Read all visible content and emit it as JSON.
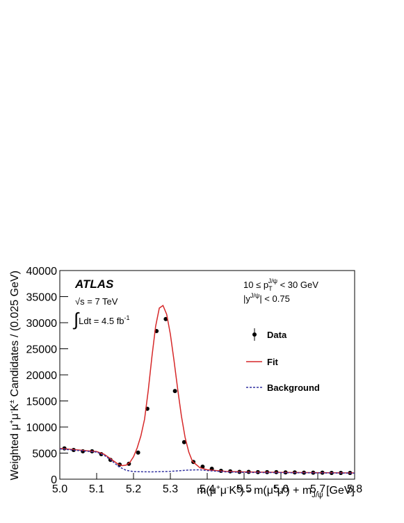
{
  "chart_data": {
    "type": "scatter",
    "brand": "ATLAS",
    "annotations": [
      {
        "parts": [
          "√s = 7 TeV"
        ]
      },
      {
        "parts": [
          "∫",
          "Ldt = 4.5 fb",
          "-1"
        ]
      },
      {
        "parts": [
          "10 ≤ p",
          "T",
          "J/ψ",
          " < 30 GeV"
        ]
      },
      {
        "parts": [
          "|y",
          "J/ψ",
          "| < 0.75"
        ]
      }
    ],
    "x_label": [
      "m(μ",
      "+",
      "μ",
      "-",
      "K",
      "±",
      ") - m(μ",
      "+",
      "μ",
      "-",
      ") + m",
      "J/ψ",
      " [GeV]"
    ],
    "y_label": [
      "Weighted μ",
      "+",
      "μ",
      "-",
      "K",
      "±",
      " Candidates / (0.025 GeV)"
    ],
    "xlim": [
      5.0,
      5.8
    ],
    "ylim": [
      0,
      40000
    ],
    "xticks": [
      {
        "value": 5.0,
        "label": "5.0"
      },
      5.1,
      5.2,
      5.3,
      5.4,
      5.5,
      5.6,
      5.7,
      5.8
    ],
    "yticks": [
      0,
      5000,
      10000,
      15000,
      20000,
      25000,
      30000,
      35000,
      40000
    ],
    "series": [
      {
        "name": "Data",
        "kind": "points",
        "color": "#000000",
        "x": [
          5.0125,
          5.0375,
          5.0625,
          5.0875,
          5.1125,
          5.1375,
          5.1625,
          5.1875,
          5.2125,
          5.2375,
          5.2625,
          5.2875,
          5.3125,
          5.3375,
          5.3625,
          5.3875,
          5.4125,
          5.4375,
          5.4625,
          5.4875,
          5.5125,
          5.5375,
          5.5625,
          5.5875,
          5.6125,
          5.6375,
          5.6625,
          5.6875,
          5.7125,
          5.7375,
          5.7625,
          5.7875
        ],
        "values": [
          5900,
          5600,
          5350,
          5350,
          4800,
          3700,
          2800,
          2950,
          5100,
          13500,
          28400,
          30700,
          16900,
          7100,
          3300,
          2400,
          2000,
          1600,
          1500,
          1400,
          1400,
          1350,
          1350,
          1350,
          1300,
          1300,
          1250,
          1250,
          1250,
          1200,
          1200,
          1200
        ]
      },
      {
        "name": "Fit",
        "kind": "line",
        "color": "#d62728",
        "x": [
          5.0,
          5.05,
          5.1,
          5.12,
          5.14,
          5.16,
          5.17,
          5.18,
          5.19,
          5.2,
          5.21,
          5.22,
          5.23,
          5.24,
          5.25,
          5.26,
          5.27,
          5.28,
          5.29,
          5.3,
          5.31,
          5.32,
          5.33,
          5.34,
          5.35,
          5.36,
          5.38,
          5.4,
          5.45,
          5.5,
          5.6,
          5.7,
          5.8
        ],
        "values": [
          5900,
          5600,
          5300,
          4800,
          3800,
          2800,
          2600,
          2700,
          3200,
          4300,
          6000,
          8300,
          11500,
          17000,
          23500,
          29300,
          32800,
          33300,
          31600,
          27800,
          22700,
          17200,
          12100,
          8000,
          5200,
          3400,
          2200,
          1800,
          1500,
          1400,
          1300,
          1250,
          1200
        ]
      },
      {
        "name": "Background",
        "kind": "dashed",
        "color": "#3030a0",
        "x": [
          5.0,
          5.05,
          5.1,
          5.12,
          5.14,
          5.16,
          5.18,
          5.2,
          5.25,
          5.3,
          5.35,
          5.38,
          5.4,
          5.45,
          5.5,
          5.6,
          5.7,
          5.8
        ],
        "values": [
          5800,
          5500,
          5200,
          4600,
          3600,
          2400,
          1700,
          1450,
          1400,
          1500,
          1750,
          1800,
          1650,
          1400,
          1300,
          1250,
          1200,
          1150
        ]
      }
    ]
  }
}
